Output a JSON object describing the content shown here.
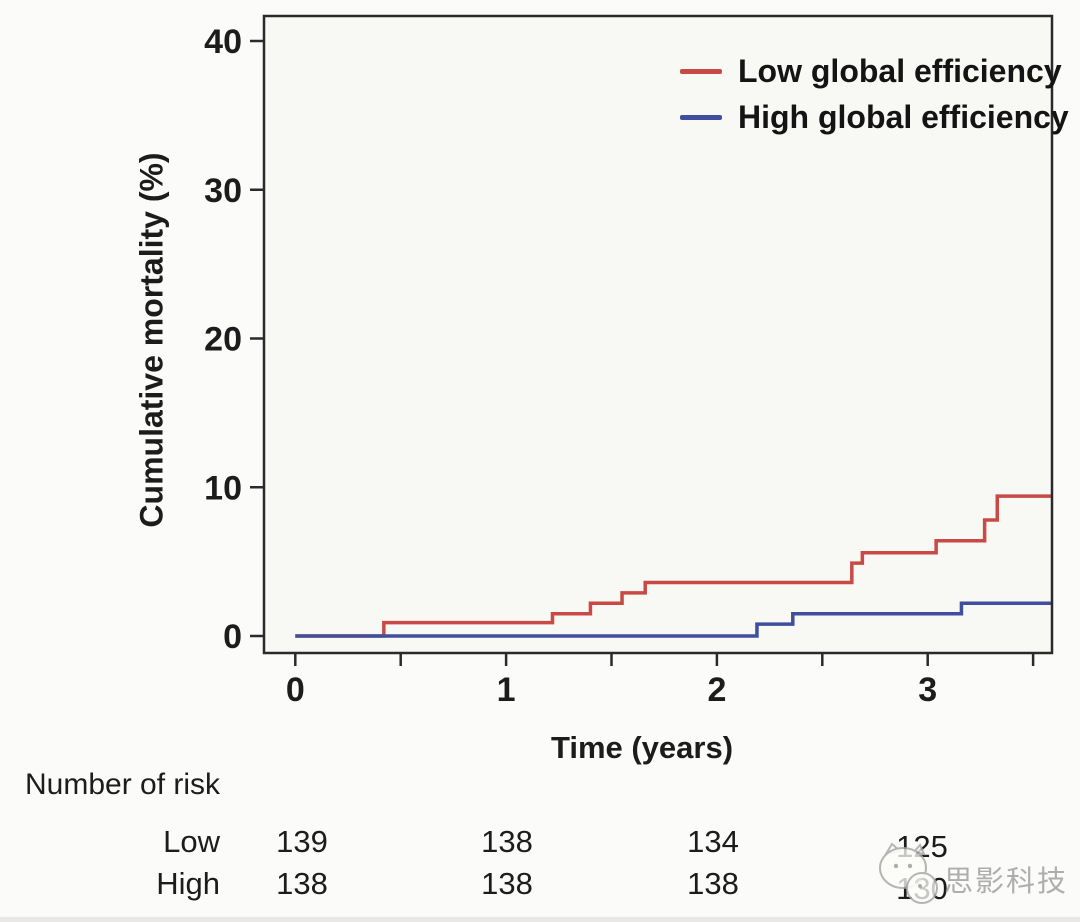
{
  "figure": {
    "background": "#fbfbf9",
    "plot_background": "#f8f8f5",
    "axis_color": "#2a2a2a",
    "text_color": "#1c1c1c"
  },
  "chart_data": {
    "type": "line",
    "variant": "kaplan_meier_step",
    "title": "",
    "xlabel": "Time (years)",
    "ylabel": "Cumulative mortality (%)",
    "xlim": [
      -0.15,
      3.59
    ],
    "ylim": [
      -1.2,
      41.7
    ],
    "x_ticks": [
      0,
      1,
      2,
      3
    ],
    "x_minor_ticks": [
      0.5,
      1.5,
      2.5,
      3.5
    ],
    "y_ticks": [
      0,
      10,
      20,
      30,
      40
    ],
    "grid": false,
    "legend": {
      "position": "top-right-inside",
      "entries": [
        {
          "label": "Low global efficiency",
          "color": "#c94a45"
        },
        {
          "label": "High global efficiency",
          "color": "#3f4f9d"
        }
      ]
    },
    "series": [
      {
        "name": "Low global efficiency",
        "color": "#c94a45",
        "start_value": 0,
        "end_time": 3.59,
        "step_events": [
          [
            0.42,
            0.9
          ],
          [
            1.22,
            1.5
          ],
          [
            1.4,
            2.2
          ],
          [
            1.55,
            2.9
          ],
          [
            1.66,
            3.6
          ],
          [
            2.64,
            4.9
          ],
          [
            2.69,
            5.6
          ],
          [
            3.04,
            6.4
          ],
          [
            3.27,
            7.8
          ],
          [
            3.33,
            9.4
          ]
        ]
      },
      {
        "name": "High global efficiency",
        "color": "#3f4f9d",
        "start_value": 0,
        "end_time": 3.59,
        "step_events": [
          [
            2.19,
            0.8
          ],
          [
            2.36,
            1.5
          ],
          [
            3.16,
            2.2
          ]
        ]
      }
    ]
  },
  "risk_table": {
    "title": "Number of risk",
    "time_points": [
      0,
      1,
      2,
      3
    ],
    "rows": [
      {
        "label": "Low",
        "values": [
          "139",
          "138",
          "134",
          "125"
        ]
      },
      {
        "label": "High",
        "values": [
          "138",
          "138",
          "138",
          "130"
        ]
      }
    ]
  },
  "watermark": {
    "text": "思影科技"
  }
}
